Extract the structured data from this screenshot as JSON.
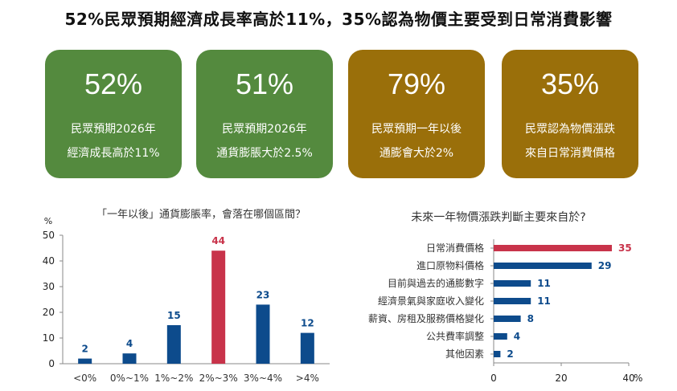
{
  "headline": "52%民眾預期經濟成長率高於11%，35%認為物價主要受到日常消費影響",
  "cards": [
    {
      "value": "52%",
      "line1": "民眾預期2026年",
      "line2": "經濟成長高於11%",
      "color": "#548a3e"
    },
    {
      "value": "51%",
      "line1": "民眾預期2026年",
      "line2": "通貨膨脹大於2.5%",
      "color": "#548a3e"
    },
    {
      "value": "79%",
      "line1": "民眾預期一年以後",
      "line2": "通膨會大於2%",
      "color": "#9a6f0a"
    },
    {
      "value": "35%",
      "line1": "民眾認為物價漲跌",
      "line2": "來自日常消費價格",
      "color": "#9a6f0a"
    }
  ],
  "chart_data": [
    {
      "type": "bar",
      "title": "「一年以後」通貨膨脹率，會落在哪個區間？",
      "ylabel": "%",
      "categories": [
        "<0%",
        "0%~1%",
        "1%~2%",
        "2%~3%",
        "3%~4%",
        ">4%"
      ],
      "values": [
        2,
        4,
        15,
        44,
        23,
        12
      ],
      "ylim": [
        0,
        50
      ],
      "yticks": [
        0,
        10,
        20,
        30,
        40,
        50
      ],
      "bar_color": "#0d4b8c",
      "highlight_color": "#c8334a",
      "highlight_index": 3
    },
    {
      "type": "bar",
      "orientation": "horizontal",
      "title": "未來一年物價漲跌判斷主要來自於?",
      "xlabel": "%",
      "categories": [
        "日常消費價格",
        "進口原物料價格",
        "目前與過去的通膨數字",
        "經濟景氣與家庭收入變化",
        "薪資、房租及服務價格變化",
        "公共費率調整",
        "其他因素"
      ],
      "values": [
        35,
        29,
        11,
        11,
        8,
        4,
        2
      ],
      "xlim": [
        0,
        40
      ],
      "xticks": [
        0,
        20,
        40
      ],
      "bar_color": "#0d4b8c",
      "highlight_color": "#c8334a",
      "highlight_index": 0
    }
  ]
}
